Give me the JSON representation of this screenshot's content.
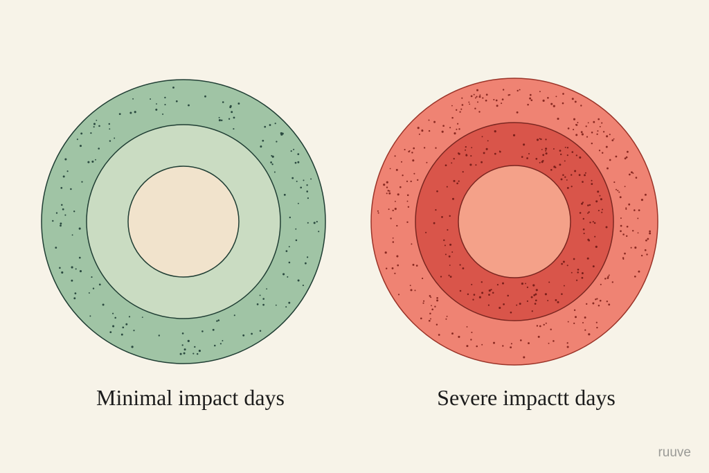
{
  "panels": [
    {
      "label": "Minimal impact days"
    },
    {
      "label": "Severe impactt days"
    }
  ],
  "watermark": "ruuve"
}
